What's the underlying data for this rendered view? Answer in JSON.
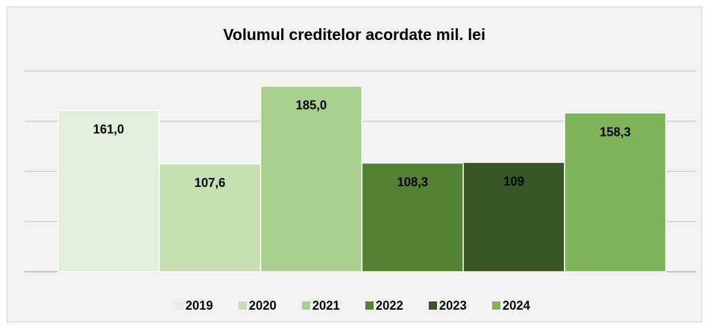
{
  "chart_data": {
    "type": "bar",
    "title": "Volumul creditelor acordate mil. lei",
    "series": [
      {
        "name": "2019",
        "color": "#e2efda",
        "values": [
          161
        ],
        "value_labels": [
          "161,0"
        ]
      },
      {
        "name": "2020",
        "color": "#c6e0b4",
        "values": [
          107.6
        ],
        "value_labels": [
          "107,6"
        ]
      },
      {
        "name": "2021",
        "color": "#a9d08e",
        "values": [
          185
        ],
        "value_labels": [
          "185,0"
        ]
      },
      {
        "name": "2022",
        "color": "#548235",
        "values": [
          108.3
        ],
        "value_labels": [
          "108,3"
        ]
      },
      {
        "name": "2023",
        "color": "#375623",
        "values": [
          109
        ],
        "value_labels": [
          "109"
        ]
      },
      {
        "name": "2024",
        "color": "#7eb35a",
        "values": [
          158.3
        ],
        "value_labels": [
          "158,3"
        ]
      }
    ],
    "ylim": [
      0,
      200
    ],
    "yticks": [
      0,
      50,
      100,
      150,
      200
    ],
    "grid": true,
    "legend": "bottom"
  }
}
